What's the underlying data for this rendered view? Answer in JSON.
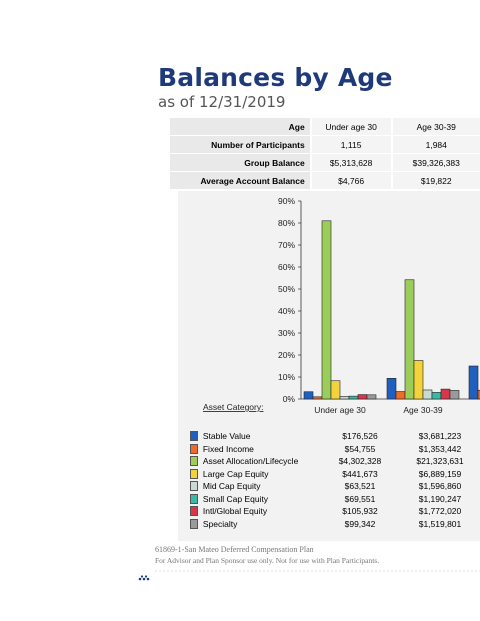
{
  "header": {
    "title": "Balances by Age",
    "subtitle": "as of 12/31/2019"
  },
  "summary_table": {
    "columns": [
      "Age",
      "Under age 30",
      "Age 30-39"
    ],
    "rows": [
      {
        "label": "Number of Participants",
        "values": [
          "1,115",
          "1,984"
        ]
      },
      {
        "label": "Group Balance",
        "values": [
          "$5,313,628",
          "$39,326,383"
        ]
      },
      {
        "label": "Average Account Balance",
        "values": [
          "$4,766",
          "$19,822"
        ]
      }
    ]
  },
  "chart_data": {
    "type": "bar",
    "ylim": [
      0,
      90
    ],
    "yticks": [
      "0%",
      "10%",
      "20%",
      "30%",
      "40%",
      "50%",
      "60%",
      "70%",
      "80%",
      "90%"
    ],
    "ytick_values": [
      0,
      10,
      20,
      30,
      40,
      50,
      60,
      70,
      80,
      90
    ],
    "categories": [
      "Under age 30",
      "Age 30-39"
    ],
    "category_axis_label": "Asset Category:",
    "series": [
      {
        "name": "Stable Value",
        "color": "#1f5fbf",
        "values": [
          3.3,
          9.4
        ],
        "amounts": [
          "$176,526",
          "$3,681,223"
        ]
      },
      {
        "name": "Fixed Income",
        "color": "#f06a28",
        "values": [
          1.0,
          3.4
        ],
        "amounts": [
          "$54,755",
          "$1,353,442"
        ]
      },
      {
        "name": "Asset Allocation/Lifecycle",
        "color": "#9ccc5a",
        "values": [
          81.0,
          54.2
        ],
        "amounts": [
          "$4,302,328",
          "$21,323,631"
        ]
      },
      {
        "name": "Large Cap Equity",
        "color": "#f2d33c",
        "values": [
          8.3,
          17.5
        ],
        "amounts": [
          "$441,673",
          "$6,889,159"
        ]
      },
      {
        "name": "Mid Cap Equity",
        "color": "#c9d9d4",
        "values": [
          1.2,
          4.1
        ],
        "amounts": [
          "$63,521",
          "$1,596,860"
        ]
      },
      {
        "name": "Small Cap Equity",
        "color": "#3cb8a4",
        "values": [
          1.3,
          3.0
        ],
        "amounts": [
          "$69,551",
          "$1,190,247"
        ]
      },
      {
        "name": "Intl/Global Equity",
        "color": "#d9364a",
        "values": [
          2.0,
          4.5
        ],
        "amounts": [
          "$105,932",
          "$1,772,020"
        ]
      },
      {
        "name": "Specialty",
        "color": "#9a9a9a",
        "values": [
          1.9,
          3.9
        ],
        "amounts": [
          "$99,342",
          "$1,519,801"
        ]
      }
    ],
    "partial_next_category": {
      "stable_value": 15.0,
      "fixed_income": 4.0
    }
  },
  "footer": {
    "line1": "61869-1-San Mateo Deferred Compensation Plan",
    "line2": "For Advisor and Plan Sponsor use only. Not for use with Plan Participants."
  }
}
